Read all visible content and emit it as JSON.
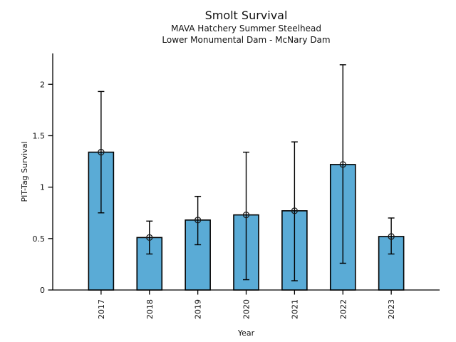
{
  "figure": {
    "title": "Smolt Survival",
    "subtitle_line1": "MAVA Hatchery Summer Steelhead",
    "subtitle_line2": "Lower Monumental Dam - McNary Dam"
  },
  "chart_data": {
    "type": "bar",
    "title": "Smolt Survival",
    "subtitle": [
      "MAVA Hatchery Summer Steelhead",
      "Lower Monumental Dam - McNary Dam"
    ],
    "categories": [
      "2017",
      "2018",
      "2019",
      "2020",
      "2021",
      "2022",
      "2023"
    ],
    "series": [
      {
        "name": "PIT-Tag Survival",
        "values": [
          1.34,
          0.51,
          0.68,
          0.73,
          0.77,
          1.22,
          0.52
        ],
        "error_low": [
          0.75,
          0.35,
          0.44,
          0.1,
          0.09,
          0.26,
          0.35
        ],
        "error_high": [
          1.93,
          0.67,
          0.91,
          1.34,
          1.44,
          2.19,
          0.7
        ]
      }
    ],
    "xlabel": "Year",
    "ylabel": "PIT-Tag Survival",
    "ylim": [
      0,
      2.3
    ],
    "yticks": [
      0,
      0.5,
      1,
      1.5,
      2
    ],
    "ytick_labels": [
      "0",
      "0.5",
      "1",
      "1.5",
      "2"
    ],
    "grid": false,
    "legend": false,
    "marker": "open-circle",
    "colors": {
      "bar_fill": "#5AABD6",
      "bar_edge": "#000000",
      "error_bar": "#000000",
      "axis": "#000000",
      "text": "#111111"
    }
  }
}
